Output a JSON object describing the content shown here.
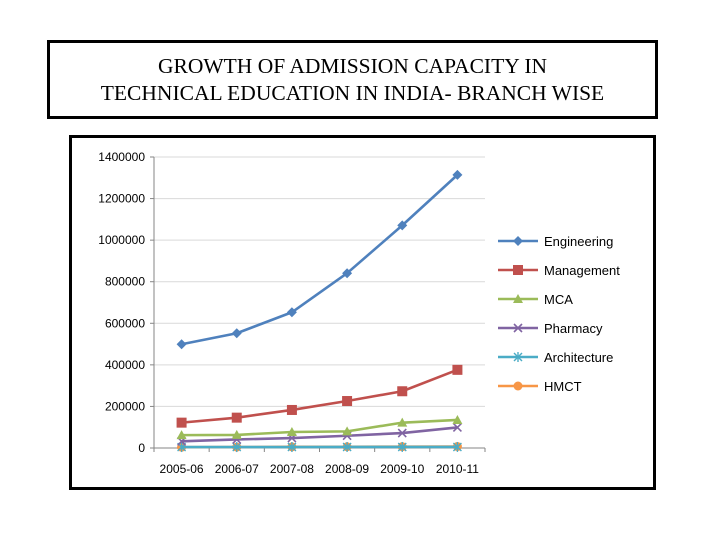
{
  "slide": {
    "title_line1": "GROWTH OF ADMISSION CAPACITY IN",
    "title_line2": "TECHNICAL EDUCATION IN INDIA- BRANCH WISE"
  },
  "chart_data": {
    "type": "line",
    "title": "",
    "xlabel": "",
    "ylabel": "",
    "categories": [
      "2005-06",
      "2006-07",
      "2007-08",
      "2008-09",
      "2009-10",
      "2010-11"
    ],
    "ylim": [
      0,
      1400000
    ],
    "yticks": [
      "0",
      "200000",
      "400000",
      "600000",
      "800000",
      "1000000",
      "1200000",
      "1400000"
    ],
    "legend_position": "right",
    "grid": true,
    "series": [
      {
        "name": "Engineering",
        "color": "#4F81BD",
        "marker": "diamond",
        "values": [
          499000,
          552000,
          653000,
          841000,
          1071000,
          1314000
        ]
      },
      {
        "name": "Management",
        "color": "#C0504D",
        "marker": "square",
        "values": [
          122000,
          146000,
          183000,
          226000,
          273000,
          376000
        ]
      },
      {
        "name": "MCA",
        "color": "#9BBB59",
        "marker": "triangle",
        "values": [
          62000,
          63000,
          77000,
          80000,
          122000,
          135000
        ]
      },
      {
        "name": "Pharmacy",
        "color": "#8064A2",
        "marker": "x",
        "values": [
          32000,
          41000,
          48000,
          59000,
          72000,
          99000
        ]
      },
      {
        "name": "Architecture",
        "color": "#4BACC6",
        "marker": "star",
        "values": [
          4500,
          4500,
          4700,
          4900,
          5000,
          5000
        ]
      },
      {
        "name": "HMCT",
        "color": "#F79646",
        "marker": "circle",
        "values": [
          4000,
          4500,
          5500,
          6000,
          6500,
          7000
        ]
      }
    ]
  }
}
